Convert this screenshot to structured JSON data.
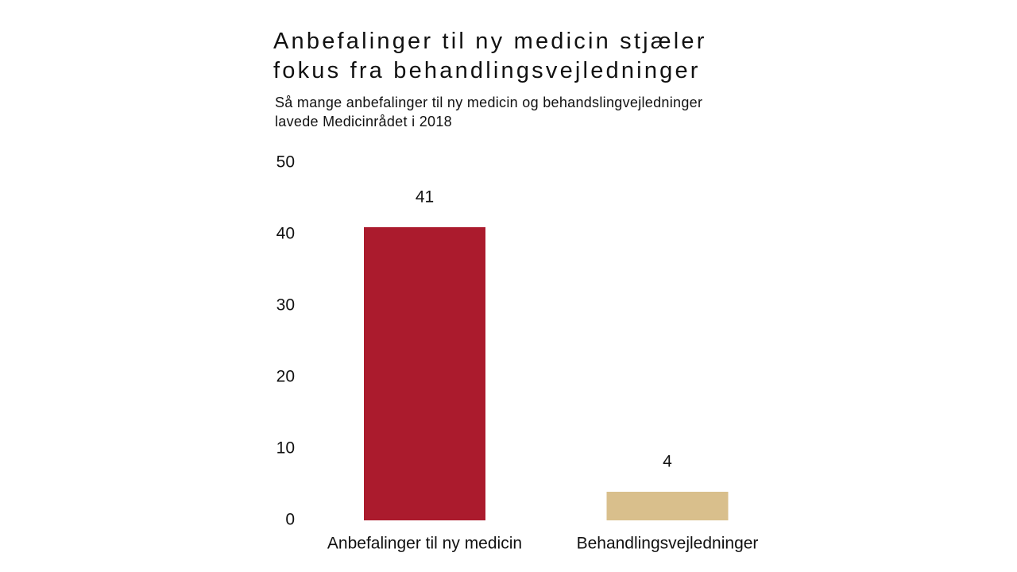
{
  "chart_data": {
    "type": "bar",
    "title_lines": [
      "Anbefalinger til ny medicin stjæler",
      "fokus fra behandlingsvejledninger"
    ],
    "subtitle_lines": [
      "Så mange anbefalinger til ny medicin og behandslingvejledninger",
      "lavede Medicinrådet i 2018"
    ],
    "categories": [
      "Anbefalinger til ny medicin",
      "Behandlingsvejledninger"
    ],
    "values": [
      41,
      4
    ],
    "data_labels": [
      "41",
      "4"
    ],
    "colors": [
      "#ab1b2d",
      "#d9bf8c"
    ],
    "ylim": [
      0,
      50
    ],
    "yticks": [
      0,
      10,
      20,
      30,
      40,
      50
    ],
    "xlabel": "",
    "ylabel": "",
    "grid": false,
    "legend": "none"
  }
}
